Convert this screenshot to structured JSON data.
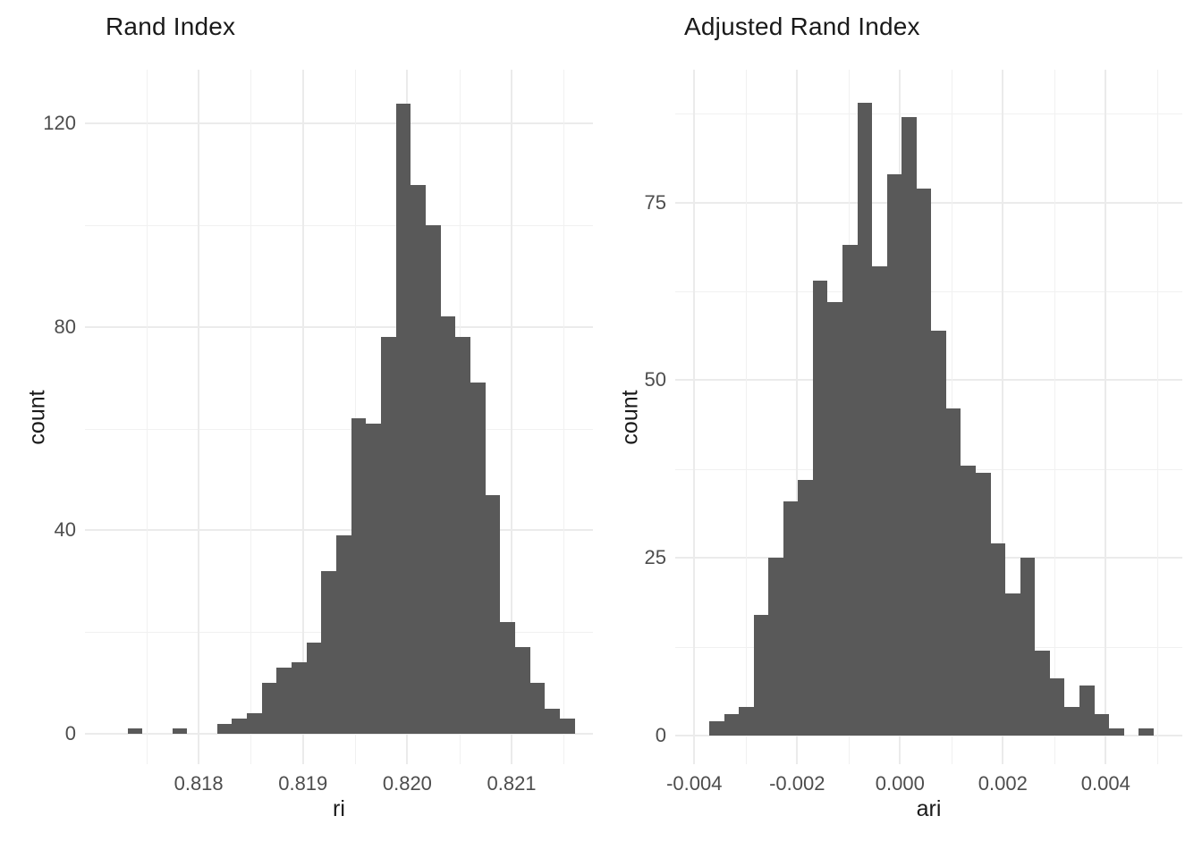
{
  "figure": {
    "background_color": "#ffffff",
    "text_color_titles": "#1a1a1a",
    "text_color_ticks": "#4d4d4d",
    "gridline_major_color": "#ebebeb",
    "gridline_minor_color": "#f1f1f1"
  },
  "chart_data": [
    {
      "type": "bar",
      "subtype": "histogram",
      "title": "Rand Index",
      "xlabel": "ri",
      "ylabel": "count",
      "bar_color": "#595959",
      "bin_start": 0.81732,
      "bin_width": 0.0001429,
      "counts": [
        1,
        0,
        0,
        1,
        0,
        0,
        2,
        3,
        4,
        10,
        13,
        14,
        18,
        32,
        39,
        62,
        61,
        78,
        124,
        108,
        100,
        82,
        78,
        69,
        47,
        22,
        17,
        10,
        5,
        3
      ],
      "x_domain": [
        0.81691,
        0.82178
      ],
      "y_max_visible": 130.6,
      "x_major_ticks": [
        {
          "value": 0.818,
          "label": "0.818"
        },
        {
          "value": 0.819,
          "label": "0.819"
        },
        {
          "value": 0.82,
          "label": "0.820"
        },
        {
          "value": 0.821,
          "label": "0.821"
        }
      ],
      "x_minor_ticks": [
        0.8175,
        0.8185,
        0.8195,
        0.8205,
        0.8215
      ],
      "y_major_ticks": [
        {
          "value": 0,
          "label": "0"
        },
        {
          "value": 40,
          "label": "40"
        },
        {
          "value": 80,
          "label": "80"
        },
        {
          "value": 120,
          "label": "120"
        }
      ],
      "y_minor_ticks": [
        20,
        60,
        100
      ],
      "grid": true,
      "legend": "none"
    },
    {
      "type": "bar",
      "subtype": "histogram",
      "title": "Adjusted Rand Index",
      "xlabel": "ari",
      "ylabel": "count",
      "bar_color": "#595959",
      "bin_start": -0.00371,
      "bin_width": 0.000288,
      "counts": [
        2,
        3,
        4,
        17,
        25,
        33,
        36,
        64,
        61,
        69,
        89,
        66,
        79,
        87,
        77,
        57,
        46,
        38,
        37,
        27,
        20,
        25,
        12,
        8,
        4,
        7,
        3,
        1,
        0,
        1
      ],
      "x_domain": [
        -0.00437,
        0.00549
      ],
      "y_max_visible": 93.7,
      "x_major_ticks": [
        {
          "value": -0.004,
          "label": "-0.004"
        },
        {
          "value": -0.002,
          "label": "-0.002"
        },
        {
          "value": 0.0,
          "label": "0.000"
        },
        {
          "value": 0.002,
          "label": "0.002"
        },
        {
          "value": 0.004,
          "label": "0.004"
        }
      ],
      "x_minor_ticks": [
        -0.003,
        -0.001,
        0.001,
        0.003,
        0.005
      ],
      "y_major_ticks": [
        {
          "value": 0,
          "label": "0"
        },
        {
          "value": 25,
          "label": "25"
        },
        {
          "value": 50,
          "label": "50"
        },
        {
          "value": 75,
          "label": "75"
        }
      ],
      "y_minor_ticks": [
        12.5,
        37.5,
        62.5,
        87.5
      ],
      "grid": true,
      "legend": "none"
    }
  ]
}
